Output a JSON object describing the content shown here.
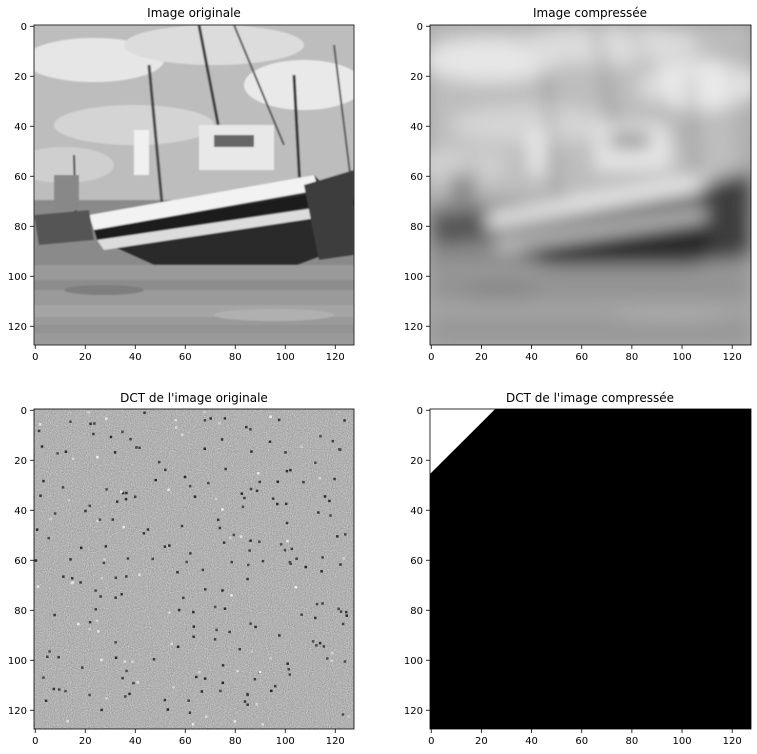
{
  "chart_data": [
    {
      "type": "heatmap",
      "title": "Image originale",
      "content": "grayscale photograph of boats on a beach",
      "xlim": [
        0,
        127
      ],
      "ylim": [
        127,
        0
      ],
      "xticks": [
        0,
        20,
        40,
        60,
        80,
        100,
        120
      ],
      "yticks": [
        0,
        20,
        40,
        60,
        80,
        100,
        120
      ],
      "colormap": "gray"
    },
    {
      "type": "heatmap",
      "title": "Image compressée",
      "content": "blurred low-frequency reconstruction of the same image",
      "xlim": [
        0,
        127
      ],
      "ylim": [
        127,
        0
      ],
      "xticks": [
        0,
        20,
        40,
        60,
        80,
        100,
        120
      ],
      "yticks": [
        0,
        20,
        40,
        60,
        80,
        100,
        120
      ],
      "colormap": "gray"
    },
    {
      "type": "heatmap",
      "title": "DCT de l'image originale",
      "content": "noisy gray DCT coefficient map",
      "xlim": [
        0,
        127
      ],
      "ylim": [
        127,
        0
      ],
      "xticks": [
        0,
        20,
        40,
        60,
        80,
        100,
        120
      ],
      "yticks": [
        0,
        20,
        40,
        60,
        80,
        100,
        120
      ],
      "colormap": "gray"
    },
    {
      "type": "heatmap",
      "title": "DCT de l'image compressée",
      "content": "binary mask: white triangle of kept coefficients in top-left corner (i + j < 26), black elsewhere",
      "xlim": [
        0,
        127
      ],
      "ylim": [
        127,
        0
      ],
      "xticks": [
        0,
        20,
        40,
        60,
        80,
        100,
        120
      ],
      "yticks": [
        0,
        20,
        40,
        60,
        80,
        100,
        120
      ],
      "colormap": "gray",
      "mask_threshold": 26
    }
  ]
}
